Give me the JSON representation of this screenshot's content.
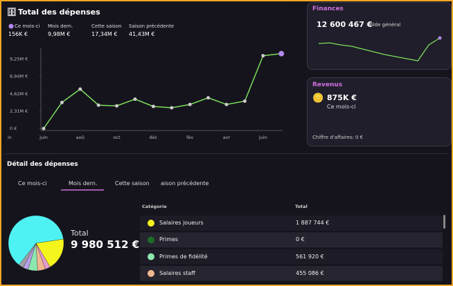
{
  "expenses": {
    "title": "Total des dépenses",
    "stats": [
      {
        "label": "Ce mois-ci",
        "value": "156K €"
      },
      {
        "label": "Mois dern.",
        "value": "9,98M €"
      },
      {
        "label": "Cette saison",
        "value": "17,34M €"
      },
      {
        "label": "Saison précédente",
        "value": "41,43M €"
      }
    ],
    "chart": {
      "type": "line",
      "color": "#7de05a",
      "clipped_label": "in",
      "categories": [
        "juin",
        null,
        "aoû",
        null,
        "oct",
        null,
        "déc",
        null,
        "fév",
        null,
        "avr",
        null,
        "juin",
        null
      ],
      "values": [
        0,
        3.47,
        5.25,
        3.11,
        3.02,
        3.91,
        2.94,
        2.76,
        3.2,
        4.09,
        3.2,
        3.65,
        9.7,
        9.98
      ],
      "ylim": [
        0,
        10.5
      ],
      "yticks": [
        {
          "value": 0,
          "label": "0 €"
        },
        {
          "value": 2.31,
          "label": "2,31M €"
        },
        {
          "value": 4.62,
          "label": "4,62M €"
        },
        {
          "value": 6.94,
          "label": "6,94M €"
        },
        {
          "value": 9.25,
          "label": "9,25M €"
        }
      ]
    }
  },
  "finances": {
    "title": "Finances",
    "value": "12 600 467 €",
    "label": "Solde général",
    "chart": {
      "type": "line",
      "color": "#7de05a",
      "ylim": [
        0,
        40
      ],
      "values": [
        27,
        28,
        25,
        23,
        19,
        15,
        11,
        8,
        5,
        2,
        25,
        35
      ]
    }
  },
  "revenus": {
    "title": "Revenus",
    "value": "875K €",
    "label": "Ce mois-ci",
    "ca_label": "Chiffre d'affaires:",
    "ca_value": "0 €"
  },
  "details": {
    "title": "Détail des dépenses",
    "tabs": [
      "Ce mois-ci",
      "Mois dern.",
      "Cette saison",
      "aison précédente"
    ],
    "active_tab": 1,
    "total_label": "Total",
    "total_value": "9 980 512 €",
    "pie": {
      "type": "pie",
      "values": [
        18.9,
        3,
        4.6,
        5.6,
        3,
        2.9,
        62
      ],
      "colors": [
        "#f5f51e",
        "#e59ad0",
        "#f0b890",
        "#8de8b0",
        "#b9a0e8",
        "#a0a0a8",
        "#4ff2f2"
      ]
    },
    "table": {
      "headers": [
        "Catégorie",
        "Total"
      ],
      "rows": [
        {
          "color": "#f5f51e",
          "name": "Salaires joueurs",
          "total": "1 887 744 €"
        },
        {
          "color": "#1e6b2a",
          "name": "Primes",
          "total": "0 €"
        },
        {
          "color": "#8de8b0",
          "name": "Primes de fidélité",
          "total": "561 920 €"
        },
        {
          "color": "#f0b890",
          "name": "Salaires staff",
          "total": "455 086 €"
        }
      ]
    }
  }
}
